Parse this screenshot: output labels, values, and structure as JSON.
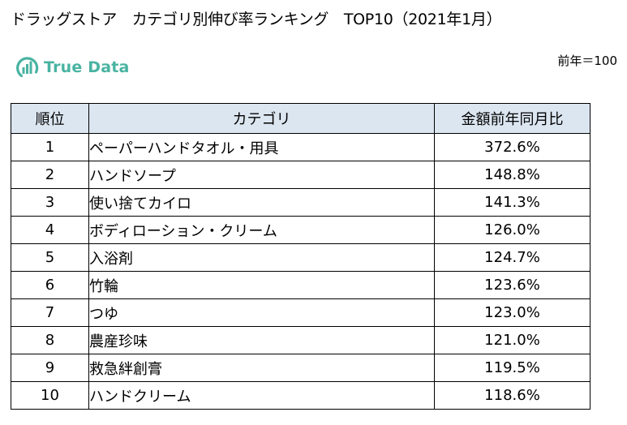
{
  "title": "ドラッグストア　カテゴリ別伸び率ランキング　TOP10（2021年1月）",
  "logo": {
    "text": "True Data",
    "icon": "bar-chart-circle-icon",
    "color": "#49b3a2"
  },
  "note": "前年＝100",
  "table": {
    "headers": {
      "rank": "順位",
      "category": "カテゴリ",
      "value": "金額前年同月比"
    },
    "header_bg": "#dce6f1",
    "rows": [
      {
        "rank": "1",
        "category": "ペーパーハンドタオル・用具",
        "value": "372.6%"
      },
      {
        "rank": "2",
        "category": "ハンドソープ",
        "value": "148.8%"
      },
      {
        "rank": "3",
        "category": "使い捨てカイロ",
        "value": "141.3%"
      },
      {
        "rank": "4",
        "category": "ボディローション・クリーム",
        "value": "126.0%"
      },
      {
        "rank": "5",
        "category": "入浴剤",
        "value": "124.7%"
      },
      {
        "rank": "6",
        "category": "竹輪",
        "value": "123.6%"
      },
      {
        "rank": "7",
        "category": "つゆ",
        "value": "123.0%"
      },
      {
        "rank": "8",
        "category": "農産珍味",
        "value": "121.0%"
      },
      {
        "rank": "9",
        "category": "救急絆創膏",
        "value": "119.5%"
      },
      {
        "rank": "10",
        "category": "ハンドクリーム",
        "value": "118.6%"
      }
    ]
  }
}
